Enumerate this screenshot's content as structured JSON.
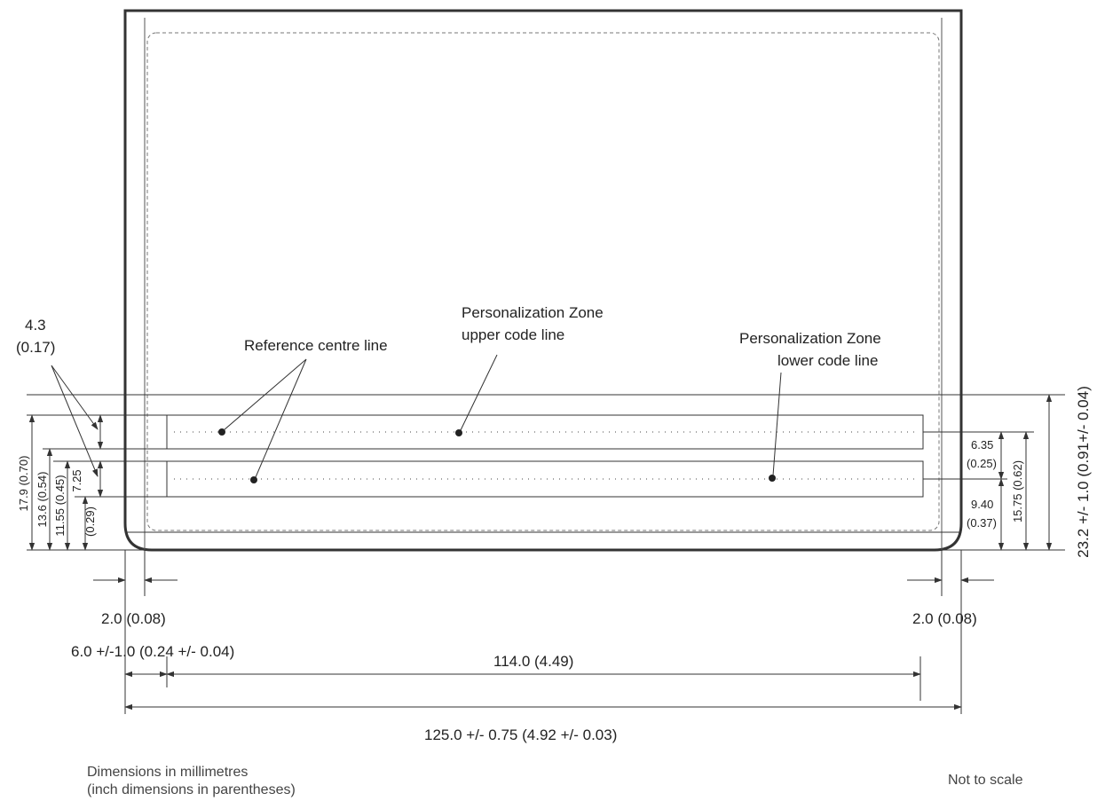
{
  "callouts": {
    "ref_centre": "Reference centre line",
    "upper_zone_1": "Personalization Zone",
    "upper_zone_2": "upper code line",
    "lower_zone_1": "Personalization Zone",
    "lower_zone_2": "lower code line"
  },
  "dimensions": {
    "d_4_3_mm": "4.3",
    "d_4_3_in": "(0.17)",
    "d_17_9": "17.9 (0.70)",
    "d_13_6": "13.6 (0.54)",
    "d_11_55": "11.55 (0.45)",
    "d_7_25_mm": "7.25",
    "d_7_25_in": "(0.29)",
    "d_6_35_mm": "6.35",
    "d_6_35_in": "(0.25)",
    "d_9_40_mm": "9.40",
    "d_9_40_in": "(0.37)",
    "d_15_75": "15.75 (0.62)",
    "d_23_2": "23.2 +/- 1.0 (0.91+/- 0.04)",
    "d_2_0_left": "2.0 (0.08)",
    "d_2_0_right": "2.0 (0.08)",
    "d_6_0": "6.0 +/-1.0 (0.24 +/- 0.04)",
    "d_114": "114.0 (4.49)",
    "d_125": "125.0 +/- 0.75 (4.92 +/- 0.03)"
  },
  "notes": {
    "units_line1": "Dimensions in millimetres",
    "units_line2": "(inch dimensions in parentheses)",
    "scale": "Not to scale"
  }
}
